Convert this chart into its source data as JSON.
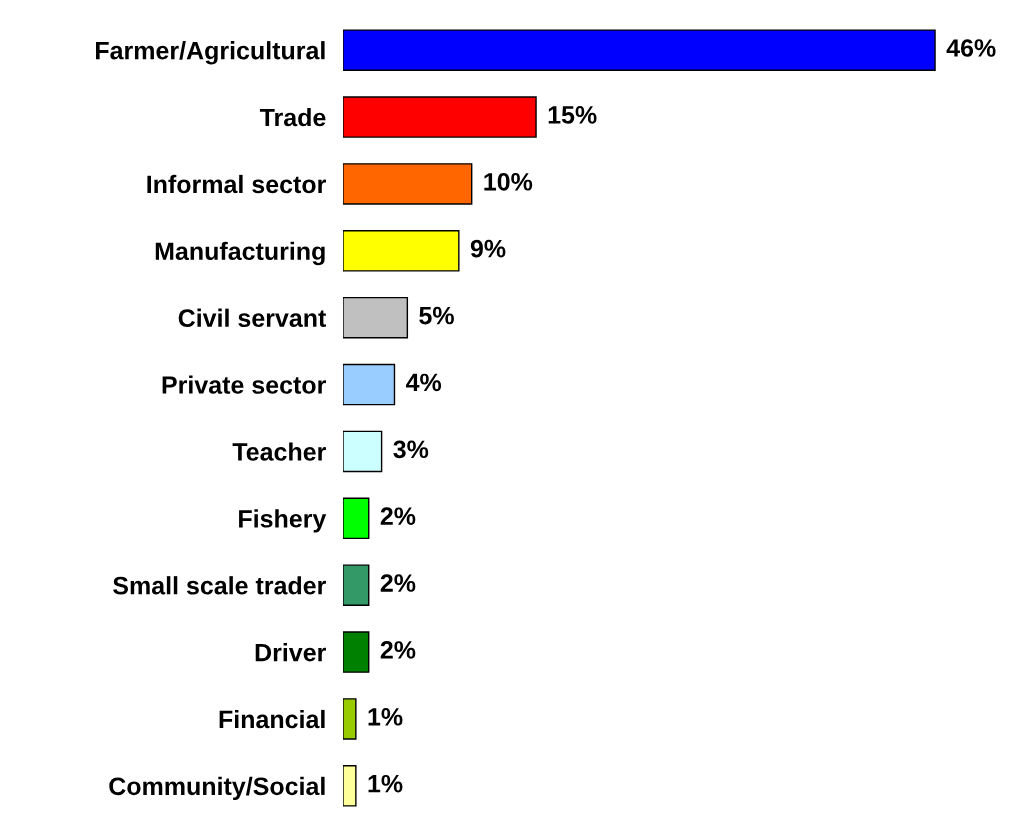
{
  "chart_data": {
    "type": "bar",
    "orientation": "horizontal",
    "categories": [
      "Farmer/Agricultural",
      "Trade",
      "Informal sector",
      "Manufacturing",
      "Civil servant",
      "Private sector",
      "Teacher",
      "Fishery",
      "Small scale trader",
      "Driver",
      "Financial",
      "Community/Social"
    ],
    "values": [
      46,
      15,
      10,
      9,
      5,
      4,
      3,
      2,
      2,
      2,
      1,
      1
    ],
    "value_labels": [
      "46%",
      "15%",
      "10%",
      "9%",
      "5%",
      "4%",
      "3%",
      "2%",
      "2%",
      "2%",
      "1%",
      "1%"
    ],
    "colors": [
      "#0000ff",
      "#ff0000",
      "#ff6600",
      "#ffff00",
      "#c0c0c0",
      "#99ccff",
      "#ccffff",
      "#00ff00",
      "#339966",
      "#008000",
      "#99cc00",
      "#ffff99"
    ],
    "grid": false,
    "legend": false
  }
}
